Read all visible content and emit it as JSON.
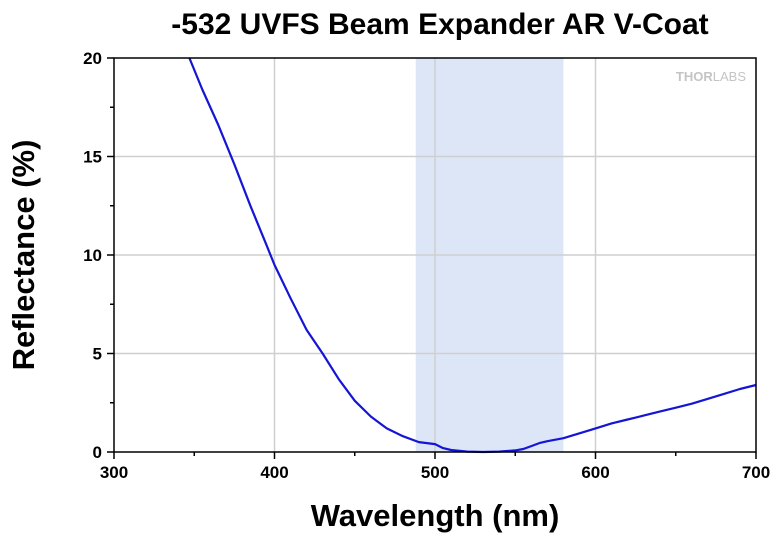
{
  "chart_data": {
    "type": "line",
    "title": "-532 UVFS Beam Expander AR V-Coat",
    "xlabel": "Wavelength (nm)",
    "ylabel": "Reflectance (%)",
    "xlim": [
      300,
      700
    ],
    "ylim": [
      0,
      20
    ],
    "x_ticks": [
      "300",
      "400",
      "500",
      "600",
      "700"
    ],
    "y_ticks": [
      "0",
      "5",
      "10",
      "15",
      "20"
    ],
    "grid": true,
    "logo": {
      "prefix": "THOR",
      "suffix": "LABS"
    },
    "shaded_region": {
      "x": [
        488,
        580
      ],
      "color": "#dde6f6"
    },
    "series": [
      {
        "color": "#1515d6",
        "x": [
          347,
          355,
          365,
          375,
          385,
          395,
          400,
          410,
          420,
          430,
          440,
          450,
          460,
          470,
          480,
          490,
          500,
          505,
          510,
          520,
          530,
          540,
          550,
          555,
          560,
          565,
          570,
          580,
          590,
          600,
          610,
          620,
          630,
          640,
          650,
          660,
          670,
          680,
          690,
          700
        ],
        "y": [
          20.0,
          18.4,
          16.6,
          14.6,
          12.5,
          10.5,
          9.5,
          7.8,
          6.2,
          5.0,
          3.7,
          2.6,
          1.8,
          1.2,
          0.8,
          0.5,
          0.4,
          0.2,
          0.1,
          0.02,
          0.0,
          0.02,
          0.08,
          0.15,
          0.3,
          0.45,
          0.55,
          0.7,
          0.95,
          1.2,
          1.45,
          1.65,
          1.85,
          2.05,
          2.25,
          2.45,
          2.7,
          2.95,
          3.2,
          3.4
        ]
      }
    ]
  }
}
